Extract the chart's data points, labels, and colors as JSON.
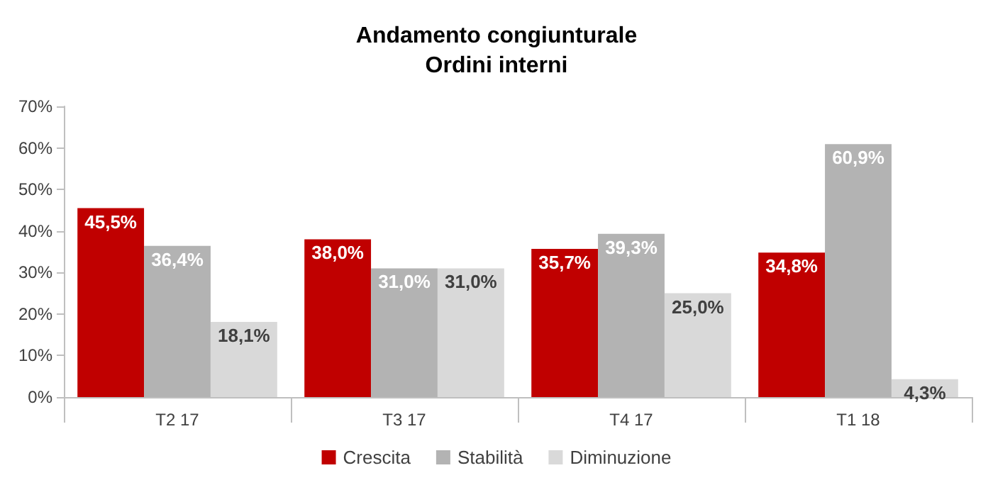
{
  "chart_data": {
    "type": "bar",
    "title": "Andamento congiunturale\nOrdini interni",
    "categories": [
      "T2 17",
      "T3 17",
      "T4 17",
      "T1 18"
    ],
    "series": [
      {
        "name": "Crescita",
        "color": "#c00000",
        "values": [
          45.5,
          38.0,
          35.7,
          34.8
        ],
        "value_labels": [
          "45,5%",
          "38,0%",
          "35,7%",
          "34,8%"
        ]
      },
      {
        "name": "Stabilità",
        "color": "#b3b3b3",
        "values": [
          36.4,
          31.0,
          39.3,
          60.9
        ],
        "value_labels": [
          "36,4%",
          "31,0%",
          "39,3%",
          "60,9%"
        ]
      },
      {
        "name": "Diminuzione",
        "color": "#d9d9d9",
        "values": [
          18.1,
          31.0,
          25.0,
          4.3
        ],
        "value_labels": [
          "18,1%",
          "31,0%",
          "25,0%",
          "4,3%"
        ]
      }
    ],
    "ylim": [
      0,
      70
    ],
    "yticks": [
      {
        "value": 0,
        "label": "0%"
      },
      {
        "value": 10,
        "label": "10%"
      },
      {
        "value": 20,
        "label": "20%"
      },
      {
        "value": 30,
        "label": "30%"
      },
      {
        "value": 40,
        "label": "40%"
      },
      {
        "value": 50,
        "label": "50%"
      },
      {
        "value": 60,
        "label": "60%"
      },
      {
        "value": 70,
        "label": "70%"
      }
    ],
    "grid": false,
    "legend": "bottom"
  }
}
